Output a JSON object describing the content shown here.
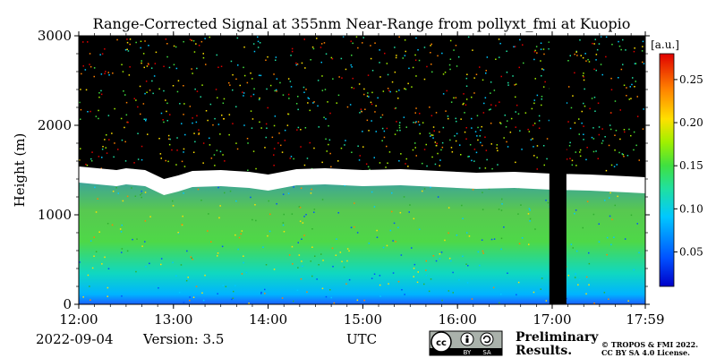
{
  "chart_data": {
    "type": "heatmap",
    "title": "Range-Corrected Signal at 355nm Near-Range from pollyxt_fmi at Kuopio",
    "ylabel": "Height (m)",
    "xlabel": "UTC",
    "ylim": [
      0,
      3000
    ],
    "yticks": [
      0,
      1000,
      2000,
      3000
    ],
    "xticks": [
      {
        "hour": 12,
        "label": "12:00"
      },
      {
        "hour": 13,
        "label": "13:00"
      },
      {
        "hour": 14,
        "label": "14:00"
      },
      {
        "hour": 15,
        "label": "15:00"
      },
      {
        "hour": 16,
        "label": "16:00"
      },
      {
        "hour": 17,
        "label": "17:00"
      },
      {
        "hour": 17.9833,
        "label": "17:59"
      }
    ],
    "xlim": [
      12,
      17.9833
    ],
    "colorbar": {
      "label": "[a.u.]",
      "range": [
        0.01,
        0.28
      ],
      "ticks": [
        0.05,
        0.1,
        0.15,
        0.2,
        0.25
      ],
      "tick_labels": [
        "0.05",
        "0.10",
        "0.15",
        "0.20",
        "0.25"
      ],
      "colormap": "jet"
    },
    "cloud_base_height_m": [
      [
        12.0,
        1420
      ],
      [
        12.3,
        1390
      ],
      [
        12.4,
        1380
      ],
      [
        12.5,
        1400
      ],
      [
        12.7,
        1380
      ],
      [
        12.9,
        1280
      ],
      [
        13.05,
        1320
      ],
      [
        13.2,
        1370
      ],
      [
        13.5,
        1380
      ],
      [
        13.8,
        1360
      ],
      [
        14.0,
        1330
      ],
      [
        14.3,
        1390
      ],
      [
        14.6,
        1400
      ],
      [
        15.0,
        1380
      ],
      [
        15.4,
        1390
      ],
      [
        15.8,
        1370
      ],
      [
        16.2,
        1350
      ],
      [
        16.6,
        1360
      ],
      [
        17.0,
        1340
      ],
      [
        17.4,
        1330
      ],
      [
        17.8,
        1310
      ],
      [
        17.9833,
        1300
      ]
    ],
    "data_gaps": [
      {
        "start_hour": 16.97,
        "end_hour": 17.15
      }
    ]
  },
  "footer": {
    "date": "2022-09-04",
    "version": "Version: 3.5",
    "preliminary_line1": "Preliminary",
    "preliminary_line2": "Results.",
    "copyright_line1": "© TROPOS & FMI 2022.",
    "copyright_line2": "CC BY SA 4.0 License.",
    "license_badge": {
      "by": "BY",
      "sa": "SA",
      "icon": "cc-license-icon"
    }
  },
  "colors": {
    "preliminary": "#e8272c",
    "cloud": "#ffffff",
    "gap": "#000000"
  }
}
